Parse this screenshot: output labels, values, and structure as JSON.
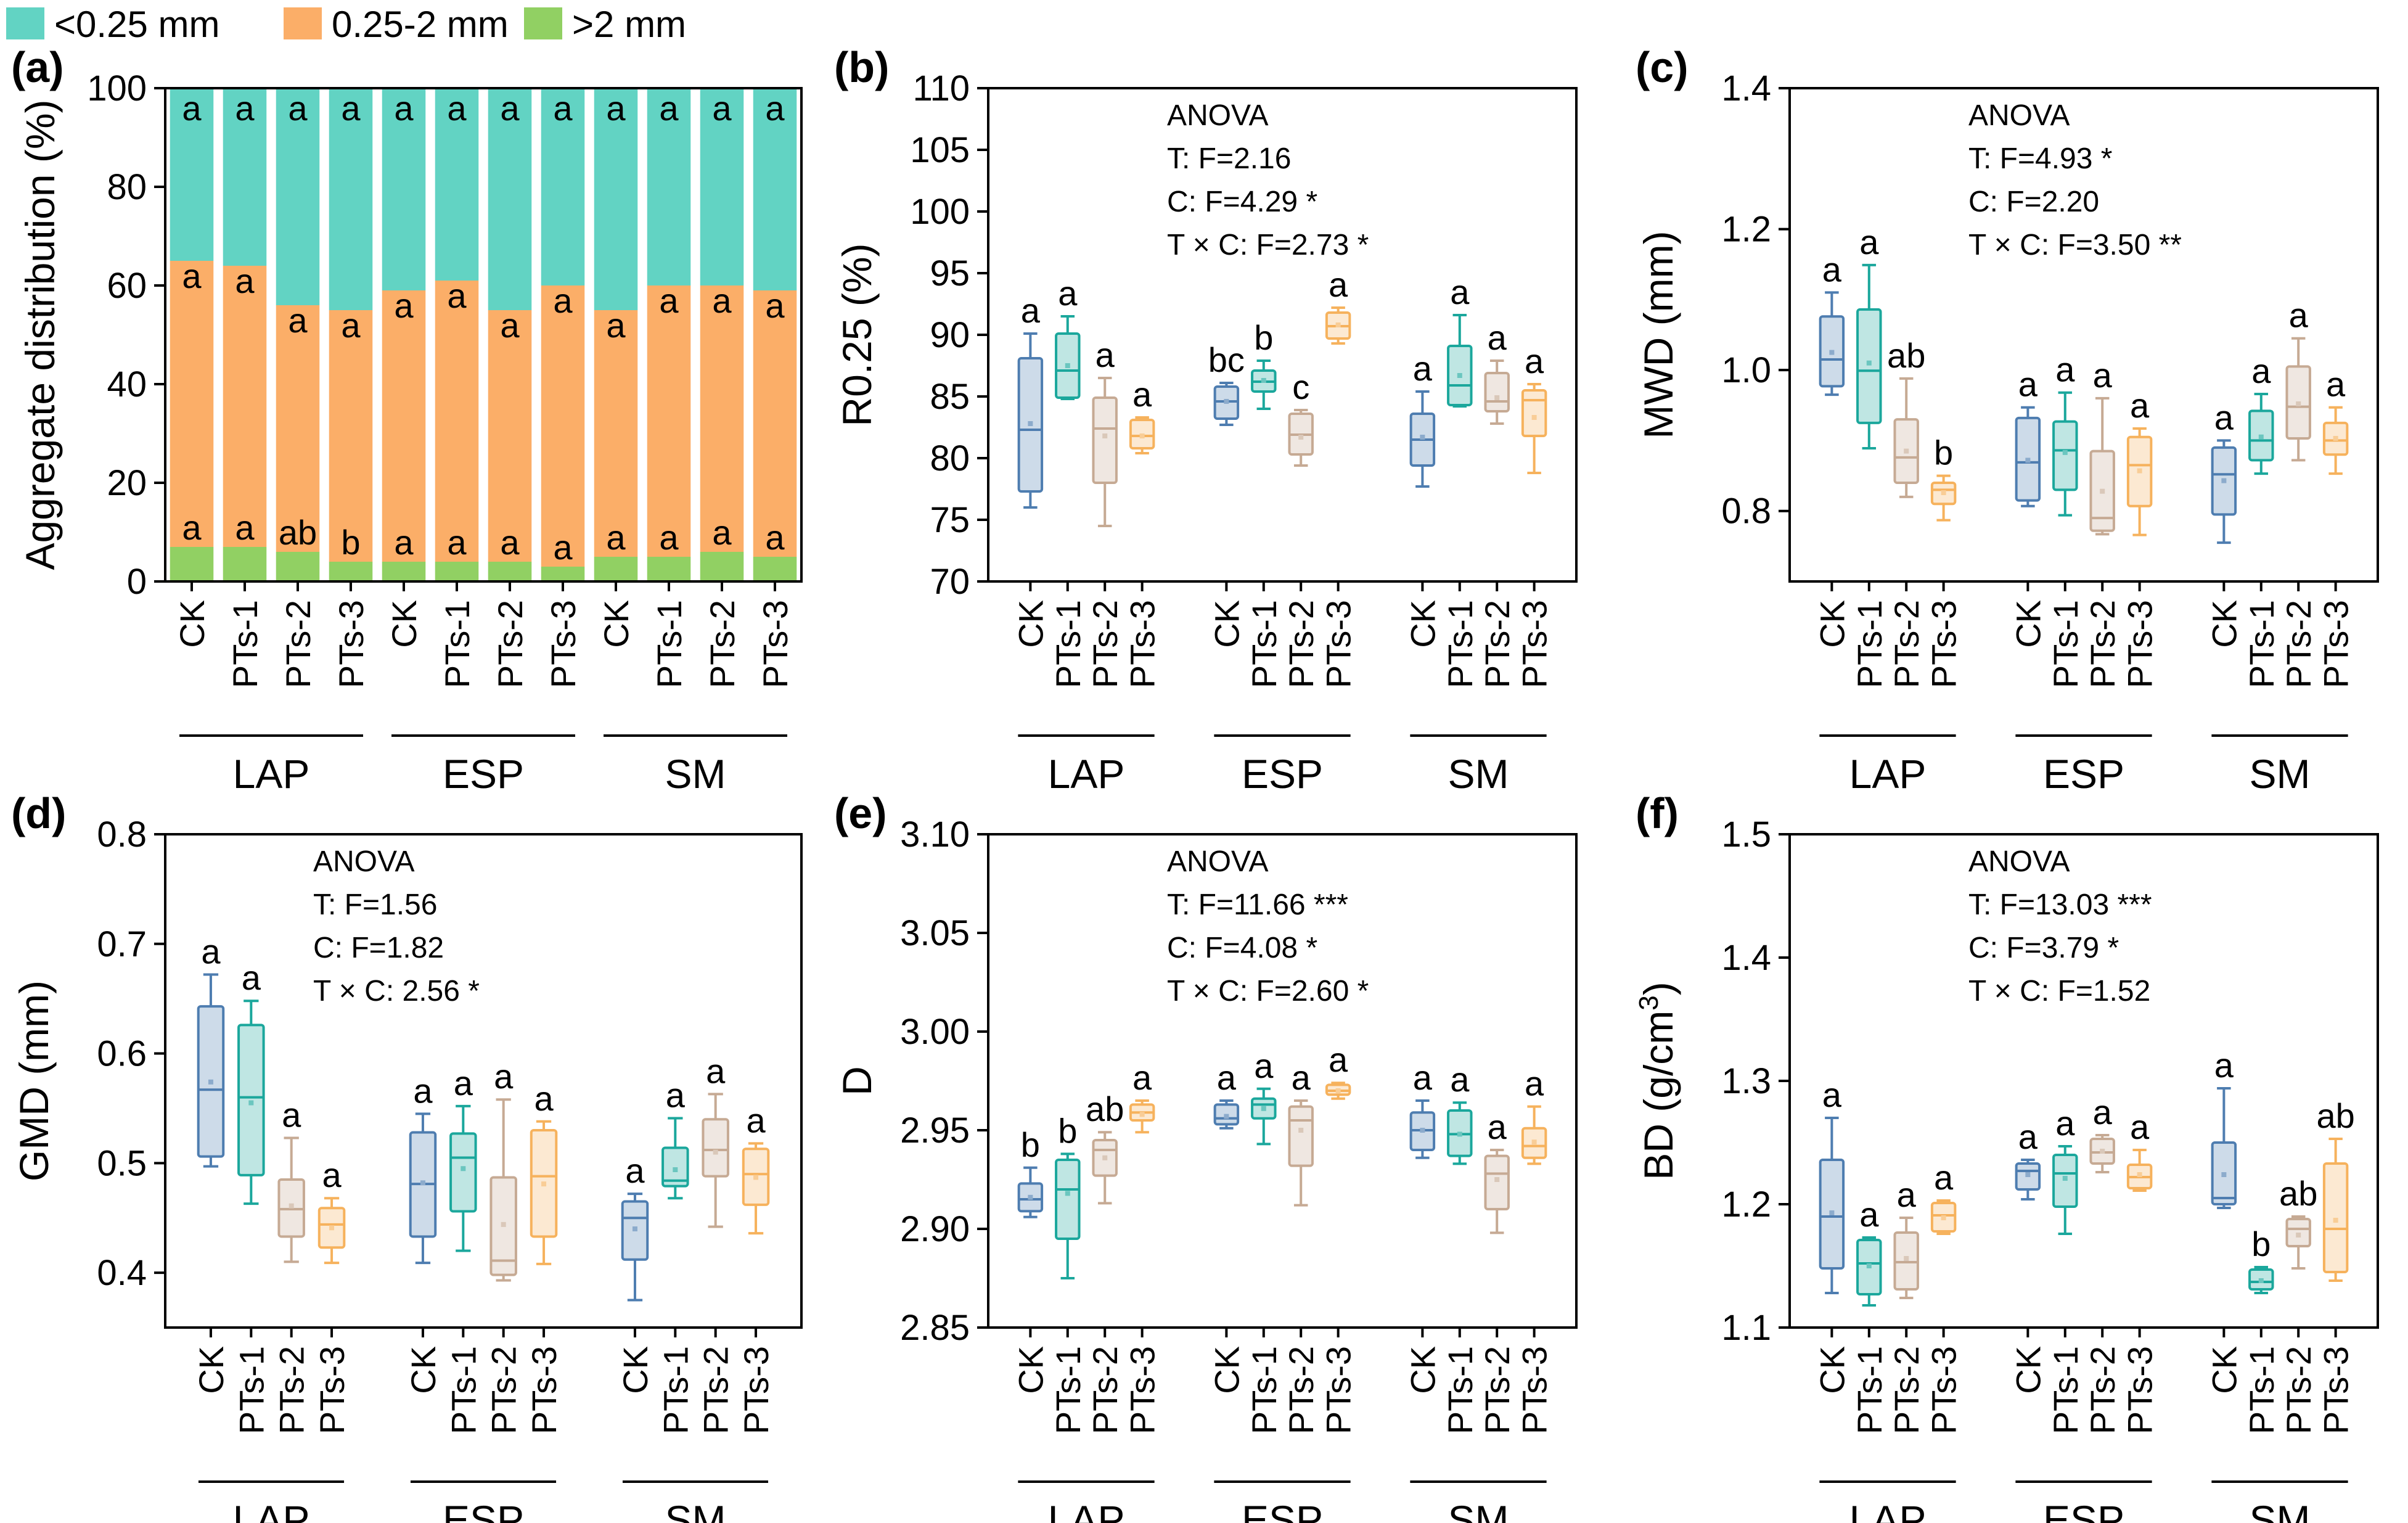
{
  "legend": [
    {
      "label": "<0.25 mm",
      "color": "#62d3c3"
    },
    {
      "label": "0.25-2 mm",
      "color": "#fbae68"
    },
    {
      "label": ">2 mm",
      "color": "#91d063"
    }
  ],
  "groups": [
    "LAP",
    "ESP",
    "SM"
  ],
  "treatments": [
    "CK",
    "PTs-1",
    "PTs-2",
    "PTs-3"
  ],
  "treatment_colors": [
    "#4e7db0",
    "#1ba79c",
    "#c6aa94",
    "#f6b25d"
  ],
  "chart_data": [
    {
      "id": "a",
      "panel_label": "(a)",
      "type": "bar",
      "title": "",
      "ylabel": "Aggregate distribution (%)",
      "ylim": [
        0,
        100
      ],
      "yticks": [
        0,
        20,
        40,
        60,
        80,
        100
      ],
      "tick_labels": [
        "0",
        "20",
        "40",
        "60",
        "80",
        "100"
      ],
      "categories": [
        "CK",
        "PTs-1",
        "PTs-2",
        "PTs-3",
        "CK",
        "PTs-1",
        "PTs-2",
        "PTs-3",
        "CK",
        "PTs-1",
        "PTs-2",
        "PTs-3"
      ],
      "series": [
        {
          "name": ">2 mm",
          "color": "#91d063",
          "values": [
            7,
            7,
            6,
            4,
            4,
            4,
            4,
            3,
            5,
            5,
            6,
            5
          ]
        },
        {
          "name": "0.25-2 mm",
          "color": "#fbae68",
          "values": [
            58,
            57,
            50,
            51,
            55,
            57,
            51,
            57,
            50,
            55,
            54,
            54
          ]
        },
        {
          "name": "<0.25 mm",
          "color": "#62d3c3",
          "values": [
            35,
            36,
            44,
            45,
            41,
            39,
            45,
            40,
            45,
            40,
            40,
            41
          ]
        }
      ],
      "letters_top": [
        "a",
        "a",
        "a",
        "a",
        "a",
        "a",
        "a",
        "a",
        "a",
        "a",
        "a",
        "a"
      ],
      "letters_mid": [
        "a",
        "a",
        "a",
        "a",
        "a",
        "a",
        "a",
        "a",
        "a",
        "a",
        "a",
        "a"
      ],
      "letters_low": [
        "a",
        "a",
        "ab",
        "b",
        "a",
        "a",
        "a",
        "a",
        "a",
        "a",
        "a",
        "a"
      ]
    },
    {
      "id": "b",
      "panel_label": "(b)",
      "type": "box",
      "ylabel": "R0.25 (%)",
      "ylim": [
        70,
        110
      ],
      "yticks": [
        70,
        75,
        80,
        85,
        90,
        95,
        100,
        105,
        110
      ],
      "tick_labels": [
        "70",
        "75",
        "80",
        "85",
        "90",
        "95",
        "100",
        "105",
        "110"
      ],
      "anova": [
        "ANOVA",
        "T: F=2.16",
        "C: F=4.29 *",
        "T × C: F=2.73 *"
      ],
      "boxes": [
        {
          "min": 76,
          "q1": 77.3,
          "median": 82.3,
          "q3": 88.1,
          "max": 90.1,
          "mean": 82.8,
          "letter": "a"
        },
        {
          "min": 84.8,
          "q1": 84.9,
          "median": 87.1,
          "q3": 90.1,
          "max": 91.5,
          "mean": 87.5,
          "letter": "a"
        },
        {
          "min": 74.5,
          "q1": 78,
          "median": 82.4,
          "q3": 84.9,
          "max": 86.5,
          "mean": 81.8,
          "letter": "a"
        },
        {
          "min": 80.4,
          "q1": 80.8,
          "median": 81.8,
          "q3": 83.1,
          "max": 83.3,
          "mean": 81.8,
          "letter": "a"
        },
        {
          "min": 82.7,
          "q1": 83.2,
          "median": 84.6,
          "q3": 85.8,
          "max": 86.1,
          "mean": 84.6,
          "letter": "bc"
        },
        {
          "min": 84,
          "q1": 85.4,
          "median": 86.2,
          "q3": 87.1,
          "max": 87.9,
          "mean": 86.3,
          "letter": "b"
        },
        {
          "min": 79.4,
          "q1": 80.3,
          "median": 81.9,
          "q3": 83.6,
          "max": 83.9,
          "mean": 81.7,
          "letter": "c"
        },
        {
          "min": 89.3,
          "q1": 89.7,
          "median": 90.7,
          "q3": 91.8,
          "max": 92.2,
          "mean": 90.8,
          "letter": "a"
        },
        {
          "min": 77.7,
          "q1": 79.4,
          "median": 81.5,
          "q3": 83.6,
          "max": 85.4,
          "mean": 81.7,
          "letter": "a"
        },
        {
          "min": 84.2,
          "q1": 84.3,
          "median": 85.9,
          "q3": 89.1,
          "max": 91.6,
          "mean": 86.7,
          "letter": "a"
        },
        {
          "min": 82.8,
          "q1": 83.8,
          "median": 84.6,
          "q3": 86.9,
          "max": 87.9,
          "mean": 84.9,
          "letter": "a"
        },
        {
          "min": 78.8,
          "q1": 81.8,
          "median": 84.7,
          "q3": 85.5,
          "max": 86,
          "mean": 83.3,
          "letter": "a"
        }
      ]
    },
    {
      "id": "c",
      "panel_label": "(c)",
      "type": "box",
      "ylabel": "MWD (mm)",
      "ylim": [
        0.7,
        1.4
      ],
      "yticks": [
        0.8,
        1.0,
        1.2,
        1.4
      ],
      "tick_labels": [
        "0.8",
        "1.0",
        "1.2",
        "1.4"
      ],
      "anova": [
        "ANOVA",
        "T: F=4.93 *",
        "C: F=2.20",
        "T × C: F=3.50 **"
      ],
      "boxes": [
        {
          "min": 0.965,
          "q1": 0.977,
          "median": 1.015,
          "q3": 1.076,
          "max": 1.11,
          "mean": 1.025,
          "letter": "a"
        },
        {
          "min": 0.889,
          "q1": 0.925,
          "median": 0.999,
          "q3": 1.086,
          "max": 1.149,
          "mean": 1.01,
          "letter": "a"
        },
        {
          "min": 0.82,
          "q1": 0.84,
          "median": 0.876,
          "q3": 0.93,
          "max": 0.988,
          "mean": 0.885,
          "letter": "ab"
        },
        {
          "min": 0.787,
          "q1": 0.81,
          "median": 0.83,
          "q3": 0.84,
          "max": 0.85,
          "mean": 0.826,
          "letter": "b"
        },
        {
          "min": 0.807,
          "q1": 0.815,
          "median": 0.869,
          "q3": 0.932,
          "max": 0.947,
          "mean": 0.872,
          "letter": "a"
        },
        {
          "min": 0.794,
          "q1": 0.83,
          "median": 0.886,
          "q3": 0.927,
          "max": 0.968,
          "mean": 0.883,
          "letter": "a"
        },
        {
          "min": 0.767,
          "q1": 0.772,
          "median": 0.79,
          "q3": 0.885,
          "max": 0.96,
          "mean": 0.828,
          "letter": "a"
        },
        {
          "min": 0.766,
          "q1": 0.807,
          "median": 0.865,
          "q3": 0.905,
          "max": 0.917,
          "mean": 0.857,
          "letter": "a"
        },
        {
          "min": 0.755,
          "q1": 0.795,
          "median": 0.852,
          "q3": 0.89,
          "max": 0.9,
          "mean": 0.843,
          "letter": "a"
        },
        {
          "min": 0.853,
          "q1": 0.872,
          "median": 0.9,
          "q3": 0.942,
          "max": 0.966,
          "mean": 0.905,
          "letter": "a"
        },
        {
          "min": 0.872,
          "q1": 0.903,
          "median": 0.948,
          "q3": 1.005,
          "max": 1.045,
          "mean": 0.952,
          "letter": "a"
        },
        {
          "min": 0.853,
          "q1": 0.88,
          "median": 0.9,
          "q3": 0.925,
          "max": 0.947,
          "mean": 0.903,
          "letter": "a"
        }
      ]
    },
    {
      "id": "d",
      "panel_label": "(d)",
      "type": "box",
      "ylabel": "GMD (mm)",
      "ylim": [
        0.35,
        0.8
      ],
      "yticks": [
        0.4,
        0.5,
        0.6,
        0.7,
        0.8
      ],
      "tick_labels": [
        "0.4",
        "0.5",
        "0.6",
        "0.7",
        "0.8"
      ],
      "anova": [
        "ANOVA",
        "T: F=1.56",
        "C: F=1.82",
        "T × C: 2.56 *"
      ],
      "boxes": [
        {
          "min": 0.497,
          "q1": 0.506,
          "median": 0.567,
          "q3": 0.643,
          "max": 0.672,
          "mean": 0.574,
          "letter": "a"
        },
        {
          "min": 0.463,
          "q1": 0.489,
          "median": 0.56,
          "q3": 0.626,
          "max": 0.648,
          "mean": 0.555,
          "letter": "a"
        },
        {
          "min": 0.41,
          "q1": 0.433,
          "median": 0.458,
          "q3": 0.485,
          "max": 0.523,
          "mean": 0.461,
          "letter": "a"
        },
        {
          "min": 0.409,
          "q1": 0.423,
          "median": 0.444,
          "q3": 0.459,
          "max": 0.468,
          "mean": 0.441,
          "letter": "a"
        },
        {
          "min": 0.409,
          "q1": 0.433,
          "median": 0.481,
          "q3": 0.528,
          "max": 0.545,
          "mean": 0.482,
          "letter": "a"
        },
        {
          "min": 0.42,
          "q1": 0.456,
          "median": 0.505,
          "q3": 0.527,
          "max": 0.552,
          "mean": 0.495,
          "letter": "a"
        },
        {
          "min": 0.393,
          "q1": 0.398,
          "median": 0.411,
          "q3": 0.487,
          "max": 0.558,
          "mean": 0.444,
          "letter": "a"
        },
        {
          "min": 0.408,
          "q1": 0.433,
          "median": 0.488,
          "q3": 0.53,
          "max": 0.538,
          "mean": 0.481,
          "letter": "a"
        },
        {
          "min": 0.375,
          "q1": 0.412,
          "median": 0.45,
          "q3": 0.465,
          "max": 0.472,
          "mean": 0.44,
          "letter": "a"
        },
        {
          "min": 0.468,
          "q1": 0.479,
          "median": 0.484,
          "q3": 0.514,
          "max": 0.541,
          "mean": 0.494,
          "letter": "a"
        },
        {
          "min": 0.442,
          "q1": 0.488,
          "median": 0.512,
          "q3": 0.54,
          "max": 0.563,
          "mean": 0.51,
          "letter": "a"
        },
        {
          "min": 0.436,
          "q1": 0.462,
          "median": 0.49,
          "q3": 0.513,
          "max": 0.518,
          "mean": 0.487,
          "letter": "a"
        }
      ]
    },
    {
      "id": "e",
      "panel_label": "(e)",
      "type": "box",
      "ylabel": "D",
      "ylim": [
        2.85,
        3.1
      ],
      "yticks": [
        2.85,
        2.9,
        2.95,
        3.0,
        3.05,
        3.1
      ],
      "tick_labels": [
        "2.85",
        "2.90",
        "2.95",
        "3.00",
        "3.05",
        "3.10"
      ],
      "anova": [
        "ANOVA",
        "T: F=11.66 ***",
        "C: F=4.08 *",
        "T × C: F=2.60 *"
      ],
      "boxes": [
        {
          "min": 2.906,
          "q1": 2.909,
          "median": 2.915,
          "q3": 2.923,
          "max": 2.931,
          "mean": 2.916,
          "letter": "b"
        },
        {
          "min": 2.875,
          "q1": 2.895,
          "median": 2.92,
          "q3": 2.935,
          "max": 2.938,
          "mean": 2.918,
          "letter": "b"
        },
        {
          "min": 2.913,
          "q1": 2.927,
          "median": 2.94,
          "q3": 2.945,
          "max": 2.949,
          "mean": 2.936,
          "letter": "ab"
        },
        {
          "min": 2.949,
          "q1": 2.955,
          "median": 2.959,
          "q3": 2.963,
          "max": 2.965,
          "mean": 2.958,
          "letter": "a"
        },
        {
          "min": 2.951,
          "q1": 2.953,
          "median": 2.956,
          "q3": 2.963,
          "max": 2.965,
          "mean": 2.957,
          "letter": "a"
        },
        {
          "min": 2.943,
          "q1": 2.956,
          "median": 2.963,
          "q3": 2.966,
          "max": 2.971,
          "mean": 2.961,
          "letter": "a"
        },
        {
          "min": 2.912,
          "q1": 2.932,
          "median": 2.955,
          "q3": 2.962,
          "max": 2.965,
          "mean": 2.95,
          "letter": "a"
        },
        {
          "min": 2.966,
          "q1": 2.968,
          "median": 2.97,
          "q3": 2.973,
          "max": 2.974,
          "mean": 2.97,
          "letter": "a"
        },
        {
          "min": 2.936,
          "q1": 2.94,
          "median": 2.95,
          "q3": 2.959,
          "max": 2.965,
          "mean": 2.95,
          "letter": "a"
        },
        {
          "min": 2.933,
          "q1": 2.937,
          "median": 2.948,
          "q3": 2.96,
          "max": 2.964,
          "mean": 2.948,
          "letter": "a"
        },
        {
          "min": 2.898,
          "q1": 2.91,
          "median": 2.928,
          "q3": 2.937,
          "max": 2.94,
          "mean": 2.925,
          "letter": "a"
        },
        {
          "min": 2.933,
          "q1": 2.936,
          "median": 2.942,
          "q3": 2.951,
          "max": 2.962,
          "mean": 2.944,
          "letter": "a"
        }
      ]
    },
    {
      "id": "f",
      "panel_label": "(f)",
      "type": "box",
      "ylabel": "BD (g/cm",
      "ylabel_sup": "3",
      "ylabel_end": ")",
      "ylim": [
        1.1,
        1.5
      ],
      "yticks": [
        1.1,
        1.2,
        1.3,
        1.4,
        1.5
      ],
      "tick_labels": [
        "1.1",
        "1.2",
        "1.3",
        "1.4",
        "1.5"
      ],
      "anova": [
        "ANOVA",
        "T: F=13.03 ***",
        "C: F=3.79 *",
        "T × C: F=1.52"
      ],
      "boxes": [
        {
          "min": 1.128,
          "q1": 1.148,
          "median": 1.19,
          "q3": 1.236,
          "max": 1.27,
          "mean": 1.193,
          "letter": "a"
        },
        {
          "min": 1.118,
          "q1": 1.127,
          "median": 1.152,
          "q3": 1.171,
          "max": 1.173,
          "mean": 1.15,
          "letter": "a"
        },
        {
          "min": 1.124,
          "q1": 1.131,
          "median": 1.153,
          "q3": 1.177,
          "max": 1.189,
          "mean": 1.156,
          "letter": "a"
        },
        {
          "min": 1.176,
          "q1": 1.178,
          "median": 1.191,
          "q3": 1.201,
          "max": 1.203,
          "mean": 1.189,
          "letter": "a"
        },
        {
          "min": 1.204,
          "q1": 1.212,
          "median": 1.227,
          "q3": 1.233,
          "max": 1.236,
          "mean": 1.224,
          "letter": "a"
        },
        {
          "min": 1.176,
          "q1": 1.198,
          "median": 1.225,
          "q3": 1.24,
          "max": 1.247,
          "mean": 1.221,
          "letter": "a"
        },
        {
          "min": 1.226,
          "q1": 1.233,
          "median": 1.242,
          "q3": 1.253,
          "max": 1.256,
          "mean": 1.243,
          "letter": "a"
        },
        {
          "min": 1.211,
          "q1": 1.213,
          "median": 1.222,
          "q3": 1.232,
          "max": 1.244,
          "mean": 1.224,
          "letter": "a"
        },
        {
          "min": 1.197,
          "q1": 1.2,
          "median": 1.205,
          "q3": 1.25,
          "max": 1.294,
          "mean": 1.224,
          "letter": "a"
        },
        {
          "min": 1.128,
          "q1": 1.131,
          "median": 1.137,
          "q3": 1.147,
          "max": 1.149,
          "mean": 1.138,
          "letter": "b"
        },
        {
          "min": 1.148,
          "q1": 1.166,
          "median": 1.18,
          "q3": 1.188,
          "max": 1.19,
          "mean": 1.175,
          "letter": "ab"
        },
        {
          "min": 1.138,
          "q1": 1.145,
          "median": 1.18,
          "q3": 1.233,
          "max": 1.253,
          "mean": 1.187,
          "letter": "ab"
        }
      ]
    }
  ]
}
